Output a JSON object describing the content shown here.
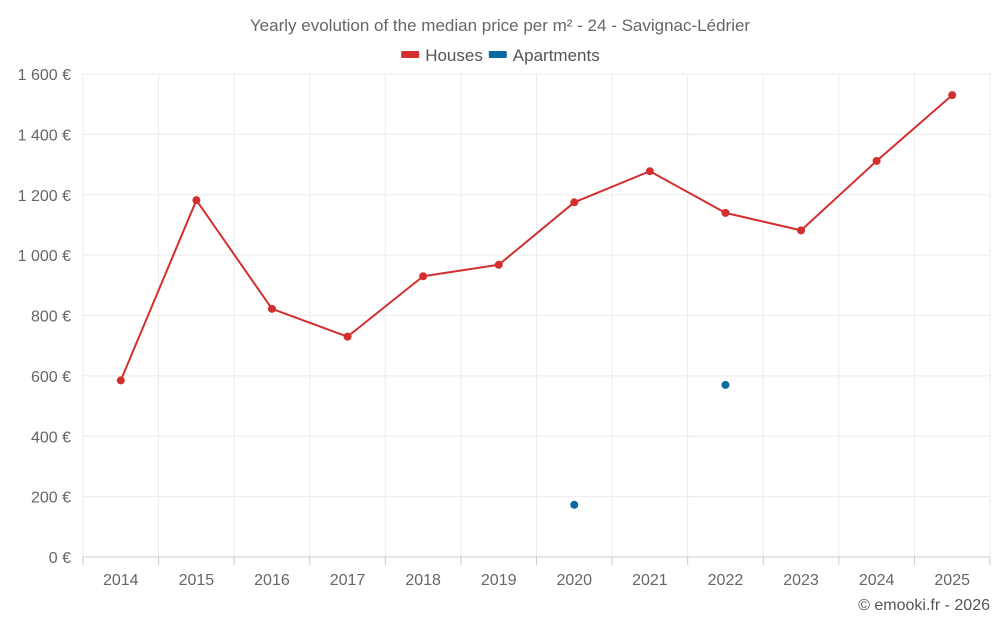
{
  "chart_data": {
    "type": "line",
    "title": "Yearly evolution of the median price per m² - 24 - Savignac-Lédrier",
    "x": [
      "2014",
      "2015",
      "2016",
      "2017",
      "2018",
      "2019",
      "2020",
      "2021",
      "2022",
      "2023",
      "2024",
      "2025"
    ],
    "ylim": [
      0,
      1600
    ],
    "yticks": [
      0,
      200,
      400,
      600,
      800,
      1000,
      1200,
      1400,
      1600
    ],
    "ytick_labels": [
      "0 €",
      "200 €",
      "400 €",
      "600 €",
      "800 €",
      "1 000 €",
      "1 200 €",
      "1 400 €",
      "1 600 €"
    ],
    "grid": true,
    "legend_position": "top-center",
    "series": [
      {
        "name": "Houses",
        "color": "#d32f2f",
        "values": [
          585,
          1182,
          822,
          730,
          930,
          968,
          1175,
          1278,
          1140,
          1082,
          1312,
          1530
        ]
      },
      {
        "name": "Apartments",
        "color": "#0b6aa2",
        "values": [
          null,
          null,
          null,
          null,
          null,
          null,
          173,
          null,
          570,
          null,
          null,
          null
        ]
      }
    ]
  },
  "credit": "© emooki.fr - 2026"
}
